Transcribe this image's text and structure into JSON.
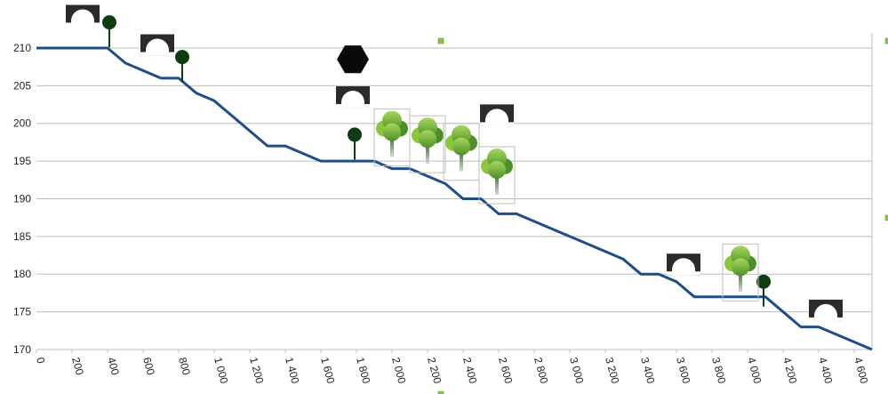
{
  "chart_data": {
    "type": "line",
    "title": "",
    "xlabel": "",
    "ylabel": "",
    "xlim": [
      0,
      4700
    ],
    "ylim": [
      170,
      212
    ],
    "grid": true,
    "legend": "none",
    "x_ticks": [
      0,
      200,
      400,
      600,
      800,
      1000,
      1200,
      1400,
      1600,
      1800,
      2000,
      2200,
      2400,
      2600,
      2800,
      3000,
      3200,
      3400,
      3600,
      3800,
      4000,
      4200,
      4400,
      4600
    ],
    "x_tick_labels": [
      "0",
      "200",
      "400",
      "600",
      "800",
      "1 000",
      "1 200",
      "1 400",
      "1 600",
      "1 800",
      "2 000",
      "2 200",
      "2 400",
      "2 600",
      "2 800",
      "3 000",
      "3 200",
      "3 400",
      "3 600",
      "3 800",
      "4 000",
      "4 200",
      "4 400",
      "4 600"
    ],
    "y_ticks": [
      170,
      175,
      180,
      185,
      190,
      195,
      200,
      205,
      210
    ],
    "series": [
      {
        "color": "#1f4e87",
        "points": [
          [
            0,
            210
          ],
          [
            400,
            210
          ],
          [
            500,
            208
          ],
          [
            700,
            206
          ],
          [
            800,
            206
          ],
          [
            900,
            204
          ],
          [
            1000,
            203
          ],
          [
            1300,
            197
          ],
          [
            1400,
            197
          ],
          [
            1600,
            195
          ],
          [
            1900,
            195
          ],
          [
            2000,
            194
          ],
          [
            2100,
            194
          ],
          [
            2300,
            192
          ],
          [
            2400,
            190
          ],
          [
            2500,
            190
          ],
          [
            2600,
            188
          ],
          [
            2700,
            188
          ],
          [
            3300,
            182
          ],
          [
            3400,
            180
          ],
          [
            3500,
            180
          ],
          [
            3600,
            179
          ],
          [
            3700,
            177
          ],
          [
            4000,
            177
          ],
          [
            4100,
            177
          ],
          [
            4300,
            173
          ],
          [
            4400,
            173
          ],
          [
            4700,
            170
          ]
        ]
      }
    ],
    "markers": [
      {
        "icon": "tunnel-icon",
        "x": 260,
        "y": 214.3
      },
      {
        "icon": "tunnel-icon",
        "x": 680,
        "y": 210.4
      },
      {
        "icon": "tunnel-icon",
        "x": 1780,
        "y": 203.5
      },
      {
        "icon": "tunnel-icon",
        "x": 2590,
        "y": 201.1
      },
      {
        "icon": "tunnel-icon",
        "x": 3640,
        "y": 181.3
      },
      {
        "icon": "tunnel-icon",
        "x": 4440,
        "y": 175.2
      },
      {
        "icon": "signal-post-icon",
        "x": 410,
        "y": 213.4
      },
      {
        "icon": "signal-post-icon",
        "x": 820,
        "y": 208.8
      },
      {
        "icon": "signal-post-icon",
        "x": 1790,
        "y": 198.5
      },
      {
        "icon": "signal-post-icon",
        "x": 4090,
        "y": 179.0
      },
      {
        "icon": "stop-hexagon-icon",
        "x": 1780,
        "y": 208.5
      },
      {
        "icon": "tree-icon",
        "x": 2000,
        "y": 198.6
      },
      {
        "icon": "tree-icon",
        "x": 2200,
        "y": 197.7
      },
      {
        "icon": "tree-icon",
        "x": 2390,
        "y": 196.7
      },
      {
        "icon": "tree-icon",
        "x": 2590,
        "y": 193.6
      },
      {
        "icon": "tree-icon",
        "x": 3960,
        "y": 180.7
      }
    ]
  },
  "colors": {
    "line": "#1f4e87",
    "grid": "#bdbdbd",
    "tunnel_bg": "#2b2b2b",
    "signal": "#0f3d12",
    "tree_light": "#8cc63f",
    "tree_dark": "#4f8f2a"
  }
}
